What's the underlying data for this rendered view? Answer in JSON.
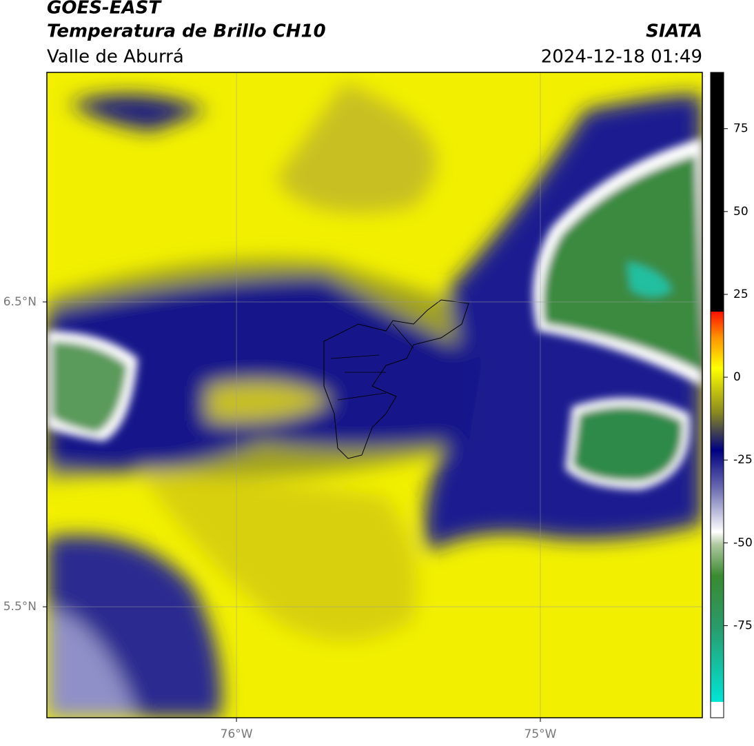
{
  "header": {
    "source": "GOES-EAST",
    "product": "Temperatura de Brillo CH10",
    "region": "Valle de Aburrá",
    "agency": "SIATA",
    "datetime": "2024-12-18 01:49"
  },
  "map": {
    "lonlim": [
      -76.624,
      -74.467
    ],
    "latlim": [
      5.136,
      7.253
    ],
    "lat_ticks": [
      {
        "value": 6.5,
        "label": "6.5°N"
      },
      {
        "value": 5.5,
        "label": "5.5°N"
      }
    ],
    "lon_ticks": [
      {
        "value": -76,
        "label": "76°W"
      },
      {
        "value": -75,
        "label": "75°W"
      }
    ]
  },
  "colorbar": {
    "lim": [
      -98,
      92
    ],
    "ticks": [
      75,
      50,
      25,
      0,
      -25,
      -50,
      -75
    ]
  }
}
